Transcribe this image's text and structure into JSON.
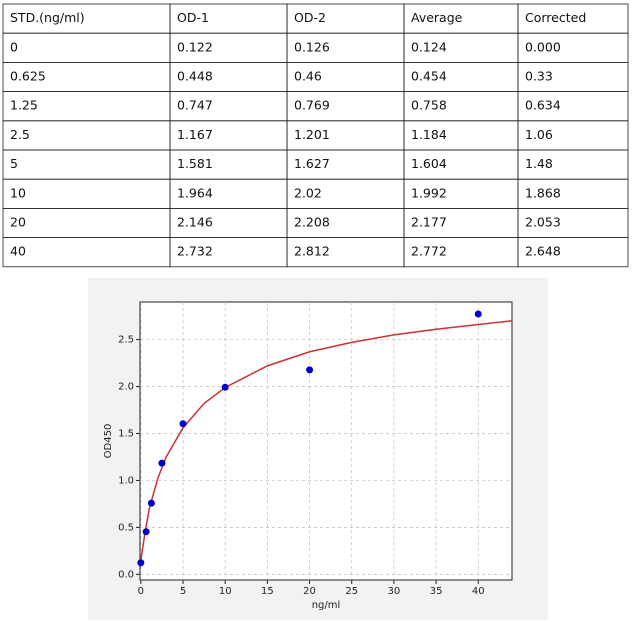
{
  "table": {
    "rows": [
      [
        "STD.(ng/ml)",
        "OD-1",
        "OD-2",
        "Average",
        "Corrected"
      ],
      [
        "0",
        "0.122",
        "0.126",
        "0.124",
        "0.000"
      ],
      [
        "0.625",
        "0.448",
        "0.46",
        "0.454",
        "0.33"
      ],
      [
        "1.25",
        "0.747",
        "0.769",
        "0.758",
        "0.634"
      ],
      [
        "2.5",
        "1.167",
        "1.201",
        "1.184",
        "1.06"
      ],
      [
        "5",
        "1.581",
        "1.627",
        "1.604",
        "1.48"
      ],
      [
        "10",
        "1.964",
        "2.02",
        "1.992",
        "1.868"
      ],
      [
        "20",
        "2.146",
        "2.208",
        "2.177",
        "2.053"
      ],
      [
        "40",
        "2.732",
        "2.812",
        "2.772",
        "2.648"
      ]
    ]
  },
  "chart_data": {
    "type": "scatter",
    "xlabel": "ng/ml",
    "ylabel": "OD450",
    "x": [
      0,
      0.625,
      1.25,
      2.5,
      5,
      10,
      20,
      40
    ],
    "series": [
      {
        "color": "#0000cc",
        "values": [
          0.124,
          0.454,
          0.758,
          1.184,
          1.604,
          1.992,
          2.177,
          2.772
        ]
      }
    ],
    "curve": {
      "color": "#d03030",
      "x": [
        0,
        0.5,
        1,
        2,
        3,
        5,
        7.5,
        10,
        15,
        20,
        25,
        30,
        35,
        40,
        44
      ],
      "values": [
        0.15,
        0.45,
        0.7,
        1.02,
        1.25,
        1.56,
        1.82,
        1.99,
        2.22,
        2.37,
        2.47,
        2.55,
        2.61,
        2.66,
        2.7
      ]
    },
    "xlim": [
      -0.1,
      44
    ],
    "ylim": [
      -0.06,
      2.9
    ],
    "xticks": [
      0,
      5,
      10,
      15,
      20,
      25,
      30,
      35,
      40
    ],
    "yticks": [
      {
        "value": 0,
        "label": "0.0"
      },
      {
        "value": 0.5,
        "label": "0.5"
      },
      {
        "value": 1,
        "label": "1.0"
      },
      {
        "value": 1.5,
        "label": "1.5"
      },
      {
        "value": 2,
        "label": "2.0"
      },
      {
        "value": 2.5,
        "label": "2.5"
      }
    ],
    "grid": true
  }
}
